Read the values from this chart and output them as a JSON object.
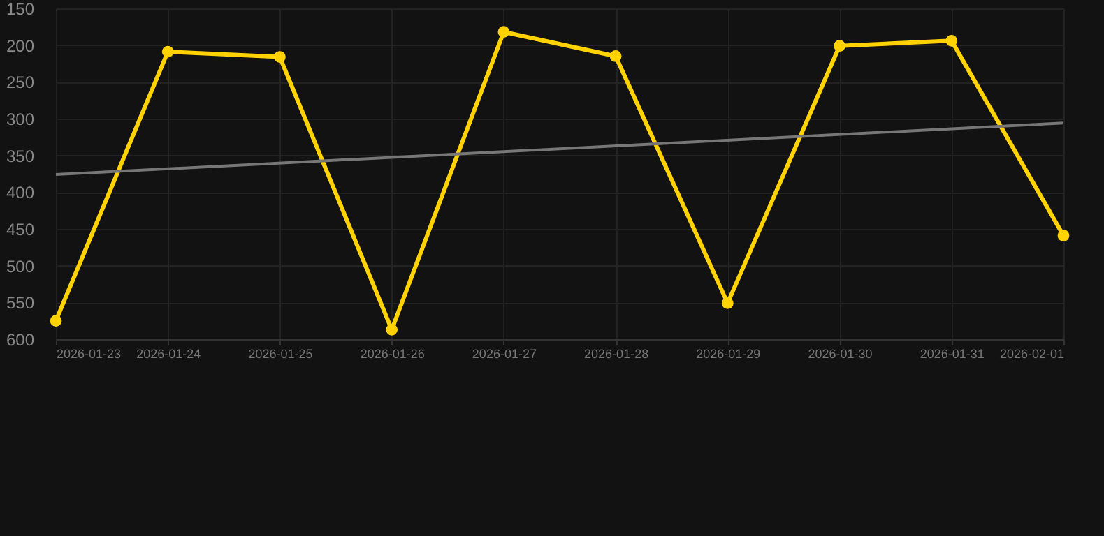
{
  "chart_data": {
    "type": "line",
    "x": [
      "2026-01-23",
      "2026-01-24",
      "2026-01-25",
      "2026-01-26",
      "2026-01-27",
      "2026-01-28",
      "2026-01-29",
      "2026-01-30",
      "2026-01-31",
      "2026-02-01"
    ],
    "series": [
      {
        "color": "#ffd200",
        "values": [
          575,
          209,
          216,
          587,
          182,
          215,
          551,
          201,
          194,
          459
        ]
      },
      {
        "type": "line",
        "color": "#777777",
        "marker": "none",
        "x": [
          "2026-01-23",
          "2026-02-01"
        ],
        "values": [
          376,
          306
        ]
      }
    ],
    "xlim": [
      "2026-01-23",
      "2026-02-01"
    ],
    "xticks": [
      "2026-01-23",
      "2026-01-24",
      "2026-01-25",
      "2026-01-26",
      "2026-01-27",
      "2026-01-28",
      "2026-01-29",
      "2026-01-30",
      "2026-01-31",
      "2026-02-01"
    ],
    "ylim": [
      600,
      150
    ],
    "yticks": [
      150,
      200,
      250,
      300,
      350,
      400,
      450,
      500,
      550,
      600
    ],
    "grid": true,
    "marker": "circle",
    "line_style": "solid"
  }
}
